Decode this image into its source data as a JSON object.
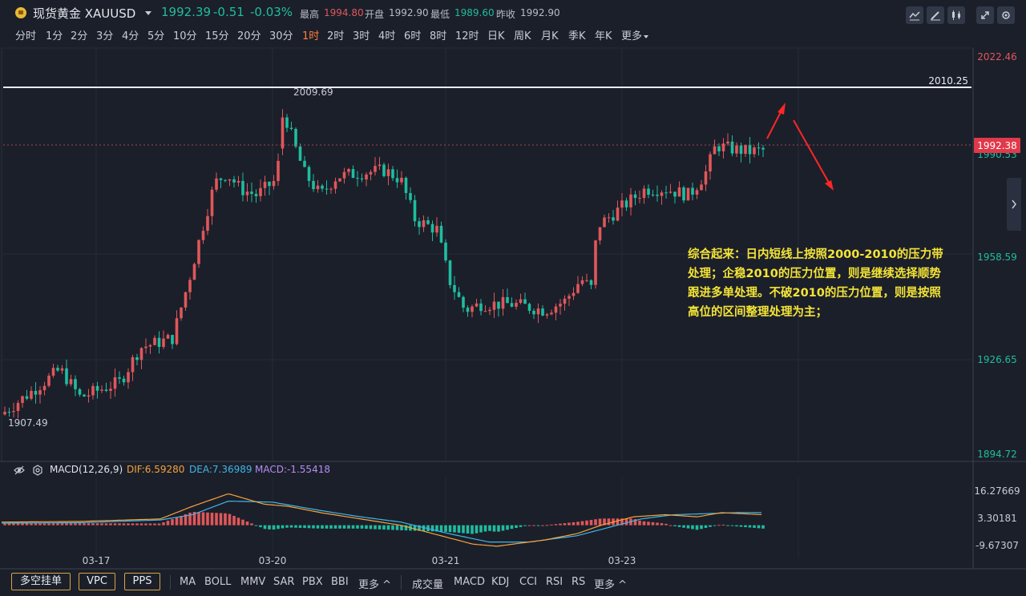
{
  "header": {
    "symbol_name": "现货黄金 XAUUSD",
    "last_price": "1992.39",
    "change": "-0.51",
    "change_pct": "-0.03%",
    "high_label": "最高",
    "high_value": "1994.80",
    "open_label": "开盘",
    "open_value": "1992.90",
    "low_label": "最低",
    "low_value": "1989.60",
    "prev_close_label": "昨收",
    "prev_close_value": "1992.90"
  },
  "toolbar_icons": [
    "indicator-icon",
    "draw-icon",
    "candle-style-icon",
    "fullscreen-icon",
    "settings-icon"
  ],
  "timeframes": [
    "分时",
    "1分",
    "2分",
    "3分",
    "4分",
    "5分",
    "10分",
    "15分",
    "20分",
    "30分",
    "1时",
    "2时",
    "3时",
    "4时",
    "6时",
    "8时",
    "12时",
    "日K",
    "周K",
    "月K",
    "季K",
    "年K",
    "更多"
  ],
  "active_timeframe": "1时",
  "main_chart": {
    "y_ticks": [
      "2022.46",
      "1990.53",
      "1958.59",
      "1926.65",
      "1894.72"
    ],
    "resistance_line_label": "2010.25",
    "current_price_tag": "1992.38",
    "high_annotation": "2009.69",
    "low_annotation": "1907.49"
  },
  "annotation_text": "综合起来：日内短线上按照2000-2010的压力带处理；企稳2010的压力位置，则是继续选择顺势跟进多单处理。不破2010的压力位置，则是按照高位的区间整理处理为主；",
  "macd": {
    "title": "MACD(12,26,9)",
    "dif_text": "DIF:6.59280",
    "dea_text": "DEA:7.36989",
    "macd_text": "MACD:-1.55418",
    "y_ticks": [
      "16.27669",
      "3.30181",
      "-9.67307"
    ],
    "x_ticks": [
      "03-17",
      "03-20",
      "03-21",
      "03-23"
    ]
  },
  "bottom_bar": {
    "main_buttons": [
      "多空挂单",
      "VPC",
      "PPS"
    ],
    "main_indicators": [
      "MA",
      "BOLL",
      "MMV",
      "SAR",
      "PBX",
      "BBI",
      "更多"
    ],
    "sub_indicators": [
      "成交量",
      "MACD",
      "KDJ",
      "CCI",
      "RSI",
      "RS",
      "更多"
    ]
  },
  "colors": {
    "background": "#1b1f2a",
    "up": "#e0575a",
    "down": "#1fbd9f",
    "dif": "#f5a33b",
    "dea": "#3fb6e8",
    "macd_label": "#b58cf3",
    "annotation": "#f4e436",
    "active_timeframe": "#ff7e3a",
    "price_tag": "#e0394a"
  }
}
